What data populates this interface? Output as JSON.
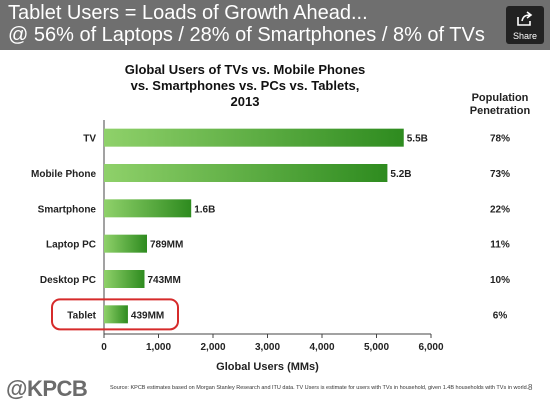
{
  "slide": {
    "headline_line1": "Tablet Users = Loads of Growth Ahead...",
    "headline_line2": "@ 56% of Laptops / 28% of Smartphones / 8% of TVs",
    "share_label": "Share",
    "logo": "@KPCB",
    "source": "Source: KPCB estimates based on Morgan Stanley Research and ITU data. TV Users is estimate for users with TVs in household, given 1.4B households with TVs in world.",
    "page_number": "8"
  },
  "colors": {
    "header_bg": "#6f6f6f",
    "bar_light": "#8fd16a",
    "bar_dark": "#2e8b1f",
    "highlight": "#d62b2b"
  },
  "chart_data": {
    "type": "bar",
    "orientation": "horizontal",
    "title": "Global Users of TVs vs. Mobile Phones vs. Smartphones vs. PCs vs. Tablets, 2013",
    "xlabel": "Global Users (MMs)",
    "ylabel": "",
    "xlim": [
      0,
      6000
    ],
    "xticks": [
      "0",
      "1,000",
      "2,000",
      "3,000",
      "4,000",
      "5,000",
      "6,000"
    ],
    "categories": [
      "TV",
      "Mobile Phone",
      "Smartphone",
      "Laptop PC",
      "Desktop PC",
      "Tablet"
    ],
    "values": [
      5500,
      5200,
      1600,
      789,
      743,
      439
    ],
    "value_labels": [
      "5.5B",
      "5.2B",
      "1.6B",
      "789MM",
      "743MM",
      "439MM"
    ],
    "side_column_title": "Population Penetration",
    "side_column": [
      "78%",
      "73%",
      "22%",
      "11%",
      "10%",
      "6%"
    ],
    "highlighted_category": "Tablet",
    "grid": false
  }
}
